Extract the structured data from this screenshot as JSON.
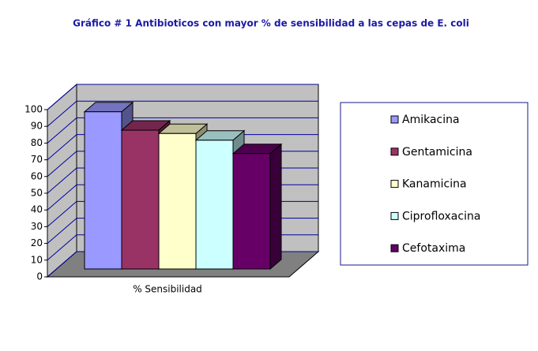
{
  "chart_data": {
    "type": "bar3d",
    "title": "Gráfico # 1 Antibioticos con mayor  % de sensibilidad a las cepas de E. coli",
    "categories": [
      "% Sensibilidad"
    ],
    "series": [
      {
        "name": "Amikacina",
        "color": "#9999ff",
        "values": [
          94
        ]
      },
      {
        "name": "Gentamicina",
        "color": "#993366",
        "values": [
          83
        ]
      },
      {
        "name": "Kanamicina",
        "color": "#ffffcc",
        "values": [
          81
        ]
      },
      {
        "name": "Ciprofloxacina",
        "color": "#ccffff",
        "values": [
          77
        ]
      },
      {
        "name": "Cefotaxima",
        "color": "#660066",
        "values": [
          69
        ]
      }
    ],
    "ylim": [
      0,
      100
    ],
    "yticks": [
      0,
      10,
      20,
      30,
      40,
      50,
      60,
      70,
      80,
      90,
      100
    ],
    "grid": true,
    "legend": "right"
  }
}
